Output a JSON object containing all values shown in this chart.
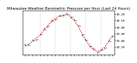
{
  "title": "Milwaukee Weather Barometric Pressure per Hour (Last 24 Hours)",
  "hours": [
    0,
    1,
    2,
    3,
    4,
    5,
    6,
    7,
    8,
    9,
    10,
    11,
    12,
    13,
    14,
    15,
    16,
    17,
    18,
    19,
    20,
    21,
    22,
    23
  ],
  "pressure": [
    29.72,
    29.74,
    29.78,
    29.83,
    29.88,
    29.95,
    30.02,
    30.08,
    30.13,
    30.16,
    30.18,
    30.19,
    30.16,
    30.1,
    30.01,
    29.9,
    29.8,
    29.72,
    29.66,
    29.63,
    29.65,
    29.7,
    29.78,
    29.87
  ],
  "scatter_offsets": [
    0.01,
    -0.01,
    0.02,
    -0.02,
    0.01,
    0.02,
    -0.01,
    0.02,
    -0.02,
    0.01,
    -0.01,
    0.02,
    -0.02,
    0.01,
    0.02,
    -0.02,
    0.01,
    -0.01,
    0.02,
    -0.01,
    0.01,
    -0.02,
    0.01,
    -0.01
  ],
  "line_color": "#dd0000",
  "marker_color": "#000000",
  "bg_color": "#ffffff",
  "grid_color": "#888888",
  "title_color": "#000000",
  "ylim": [
    29.58,
    30.25
  ],
  "yticks": [
    29.7,
    29.8,
    29.9,
    30.0,
    30.1,
    30.2
  ],
  "ytick_labels": [
    "29.70",
    "29.80",
    "29.90",
    "30.00",
    "30.10",
    "30.20"
  ],
  "vgrid_positions": [
    4,
    8,
    12,
    16,
    20
  ],
  "xlim": [
    -0.5,
    23.5
  ],
  "title_fontsize": 3.8,
  "tick_fontsize": 3.0
}
